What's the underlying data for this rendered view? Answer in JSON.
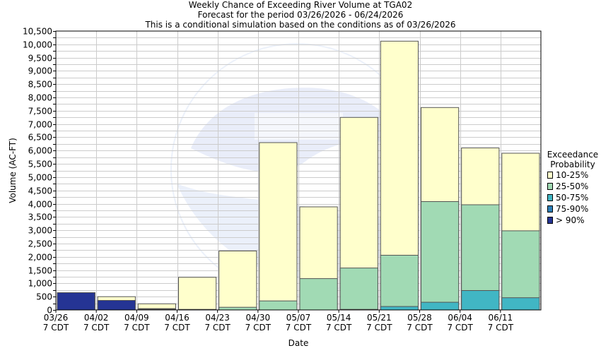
{
  "chart_data": {
    "type": "bar",
    "title": "Weekly Chance of Exceeding River Volume at TGA02",
    "subtitle": "Forecast for the period 03/26/2026 - 06/24/2026",
    "subtitle2": "This is a conditional simulation based on the conditions as of 03/26/2026",
    "xlabel": "Date",
    "ylabel": "Volume (AC-FT)",
    "ylim": [
      0,
      10500
    ],
    "ytick_step": 250,
    "ytick_label_step": 500,
    "grid": true,
    "legend_position": "right",
    "legend_title_line1": "Exceedance",
    "legend_title_line2": "Probability",
    "categories": [
      "03/26",
      "04/02",
      "04/09",
      "04/16",
      "04/23",
      "04/30",
      "05/07",
      "05/14",
      "05/21",
      "05/28",
      "06/04",
      "06/11"
    ],
    "tick_labels": [
      [
        "03/26",
        "7 CDT"
      ],
      [
        "04/02",
        "7 CDT"
      ],
      [
        "04/09",
        "7 CDT"
      ],
      [
        "04/16",
        "7 CDT"
      ],
      [
        "04/23",
        "7 CDT"
      ],
      [
        "04/30",
        "7 CDT"
      ],
      [
        "05/07",
        "7 CDT"
      ],
      [
        "05/14",
        "7 CDT"
      ],
      [
        "05/21",
        "7 CDT"
      ],
      [
        "05/28",
        "7 CDT"
      ],
      [
        "06/04",
        "7 CDT"
      ],
      [
        "06/11",
        "7 CDT"
      ]
    ],
    "series": [
      {
        "name": "10-25%",
        "color": "#ffffcc",
        "values": [
          650,
          500,
          230,
          1230,
          2220,
          6300,
          3880,
          7250,
          10120,
          7620,
          6100,
          5900
        ]
      },
      {
        "name": "25-50%",
        "color": "#a1dab4",
        "values": [
          650,
          360,
          50,
          20,
          100,
          340,
          1180,
          1580,
          2060,
          4080,
          3960,
          2980
        ]
      },
      {
        "name": "50-75%",
        "color": "#41b6c4",
        "values": [
          650,
          360,
          40,
          0,
          0,
          0,
          0,
          20,
          130,
          290,
          730,
          460
        ]
      },
      {
        "name": "75-90%",
        "color": "#2c7fb8",
        "values": [
          650,
          360,
          30,
          0,
          0,
          0,
          0,
          0,
          0,
          0,
          0,
          0
        ]
      },
      {
        "name": "> 90%",
        "color": "#253494",
        "values": [
          650,
          360,
          20,
          0,
          0,
          0,
          0,
          0,
          0,
          0,
          0,
          0
        ]
      }
    ]
  }
}
